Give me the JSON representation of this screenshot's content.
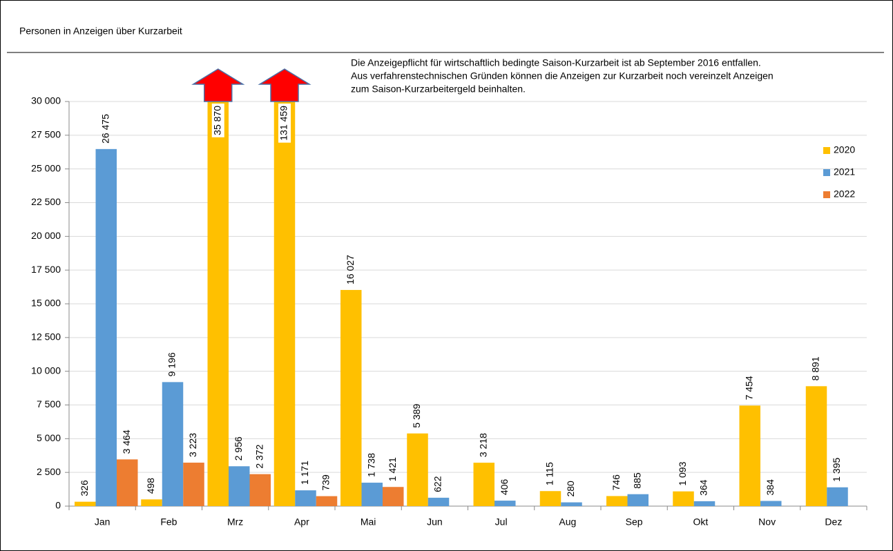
{
  "chart_data": {
    "type": "bar",
    "title": "Personen in Anzeigen über Kurzarbeit",
    "annotation": [
      "Die Anzeigepflicht für wirtschaftlich bedingte Saison-Kurzarbeit ist ab September 2016 entfallen.",
      "Aus verfahrenstechnischen Gründen können die Anzeigen zur Kurzarbeit noch vereinzelt Anzeigen",
      "zum Saison-Kurzarbeitergeld beinhalten."
    ],
    "categories": [
      "Jan",
      "Feb",
      "Mrz",
      "Apr",
      "Mai",
      "Jun",
      "Jul",
      "Aug",
      "Sep",
      "Okt",
      "Nov",
      "Dez"
    ],
    "series": [
      {
        "name": "2020",
        "color": "#ffc000",
        "values": [
          326,
          498,
          35870,
          131459,
          16027,
          5389,
          3218,
          1115,
          746,
          1093,
          7454,
          8891
        ],
        "value_labels": [
          "326",
          "498",
          "35 870",
          "131 459",
          "16 027",
          "5 389",
          "3 218",
          "1 115",
          "746",
          "1 093",
          "7 454",
          "8 891"
        ]
      },
      {
        "name": "2021",
        "color": "#5b9bd5",
        "values": [
          26475,
          9196,
          2956,
          1171,
          1738,
          622,
          406,
          280,
          885,
          364,
          384,
          1395
        ],
        "value_labels": [
          "26 475",
          "9 196",
          "2 956",
          "1 171",
          "1 738",
          "622",
          "406",
          "280",
          "885",
          "364",
          "384",
          "1 395"
        ]
      },
      {
        "name": "2022",
        "color": "#ed7d31",
        "values": [
          3464,
          3223,
          2372,
          739,
          1421,
          null,
          null,
          null,
          null,
          null,
          null,
          null
        ],
        "value_labels": [
          "3 464",
          "3 223",
          "2 372",
          "739",
          "1 421",
          null,
          null,
          null,
          null,
          null,
          null,
          null
        ]
      }
    ],
    "ylim": [
      0,
      30000
    ],
    "yticks": [
      0,
      {
        "value": 2500,
        "label": "2 500"
      },
      {
        "value": 5000,
        "label": "5 000"
      },
      {
        "value": 7500,
        "label": "7 500"
      },
      {
        "value": 10000,
        "label": "10 000"
      },
      {
        "value": 12500,
        "label": "12 500"
      },
      {
        "value": 15000,
        "label": "15 000"
      },
      {
        "value": 17500,
        "label": "17 500"
      },
      {
        "value": 20000,
        "label": "20 000"
      },
      {
        "value": 22500,
        "label": "22 500"
      },
      {
        "value": 25000,
        "label": "25 000"
      },
      {
        "value": 27500,
        "label": "27 500"
      },
      {
        "value": 30000,
        "label": "30 000"
      }
    ],
    "grid": true,
    "legend": "right"
  }
}
